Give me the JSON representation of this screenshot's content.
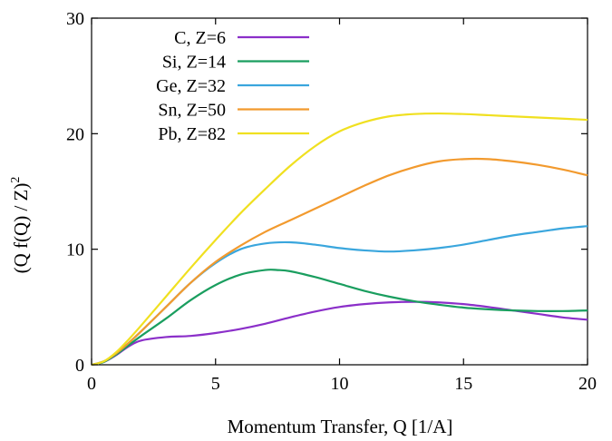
{
  "chart_data": {
    "type": "line",
    "xlabel": "Momentum Transfer, Q  [1/A]",
    "ylabel": "(Q f(Q) / Z)",
    "ylabel_superscript": "2",
    "xlim": [
      0,
      20
    ],
    "ylim": [
      0,
      30
    ],
    "xticks": [
      0,
      5,
      10,
      15,
      20
    ],
    "yticks": [
      0,
      10,
      20,
      30
    ],
    "grid": false,
    "legend_position": "top-left",
    "series": [
      {
        "name": "C,  Z=6",
        "color": "#8b2fc9",
        "x": [
          0,
          0.5,
          1,
          1.5,
          2,
          3,
          4,
          5,
          6,
          7,
          8,
          9,
          10,
          11,
          12,
          13,
          14,
          15,
          16,
          17,
          18,
          19,
          20
        ],
        "y": [
          0,
          0.25,
          0.85,
          1.6,
          2.1,
          2.4,
          2.5,
          2.75,
          3.1,
          3.55,
          4.1,
          4.6,
          5.0,
          5.25,
          5.4,
          5.45,
          5.4,
          5.25,
          5.0,
          4.7,
          4.4,
          4.1,
          3.9
        ]
      },
      {
        "name": "Si, Z=14",
        "color": "#1a9e5f",
        "x": [
          0,
          0.5,
          1,
          1.5,
          2,
          3,
          4,
          5,
          6,
          7,
          7.5,
          8,
          9,
          10,
          11,
          12,
          13,
          14,
          15,
          16,
          17,
          18,
          19,
          20
        ],
        "y": [
          0,
          0.25,
          0.9,
          1.7,
          2.5,
          4.0,
          5.6,
          6.9,
          7.8,
          8.2,
          8.2,
          8.1,
          7.6,
          7.0,
          6.4,
          5.9,
          5.5,
          5.2,
          4.95,
          4.8,
          4.7,
          4.65,
          4.65,
          4.7
        ]
      },
      {
        "name": "Ge, Z=32",
        "color": "#3aa6dd",
        "x": [
          0,
          0.5,
          1,
          1.5,
          2,
          3,
          4,
          5,
          6,
          7,
          8,
          9,
          10,
          11,
          12,
          13,
          14,
          15,
          16,
          17,
          18,
          19,
          20
        ],
        "y": [
          0,
          0.3,
          1.0,
          1.9,
          2.9,
          5.0,
          7.1,
          8.8,
          10.0,
          10.5,
          10.6,
          10.4,
          10.1,
          9.9,
          9.8,
          9.9,
          10.1,
          10.4,
          10.8,
          11.2,
          11.5,
          11.8,
          12.0
        ]
      },
      {
        "name": "Sn, Z=50",
        "color": "#f29a2e",
        "x": [
          0,
          0.5,
          1,
          1.5,
          2,
          3,
          4,
          5,
          6,
          7,
          8,
          9,
          10,
          11,
          12,
          13,
          14,
          15,
          16,
          17,
          18,
          19,
          20
        ],
        "y": [
          0,
          0.3,
          1.0,
          1.9,
          2.9,
          5.0,
          7.1,
          8.9,
          10.3,
          11.5,
          12.5,
          13.5,
          14.5,
          15.5,
          16.4,
          17.1,
          17.6,
          17.8,
          17.8,
          17.6,
          17.3,
          16.9,
          16.4
        ]
      },
      {
        "name": "Pb, Z=82",
        "color": "#f0e020",
        "x": [
          0,
          0.5,
          1,
          1.5,
          2,
          3,
          4,
          5,
          6,
          7,
          8,
          9,
          10,
          11,
          12,
          13,
          14,
          15,
          16,
          17,
          18,
          19,
          20
        ],
        "y": [
          0,
          0.3,
          1.1,
          2.2,
          3.4,
          5.9,
          8.4,
          10.8,
          13.1,
          15.2,
          17.2,
          18.9,
          20.2,
          21.0,
          21.5,
          21.7,
          21.75,
          21.7,
          21.6,
          21.5,
          21.4,
          21.3,
          21.2
        ]
      }
    ]
  }
}
